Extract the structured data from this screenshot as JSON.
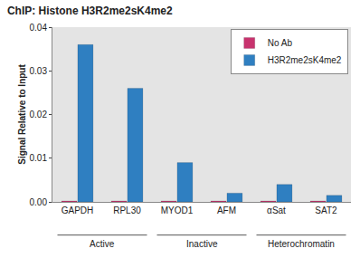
{
  "chart_data": {
    "type": "bar",
    "title": "ChIP: Histone H3R2me2sK4me2",
    "y_label": "Signal Relative to Input",
    "categories": [
      "GAPDH",
      "RPL30",
      "MYOD1",
      "AFM",
      "αSat",
      "SAT2"
    ],
    "groups": [
      {
        "label": "Active",
        "categories": [
          "GAPDH",
          "RPL30"
        ]
      },
      {
        "label": "Inactive",
        "categories": [
          "MYOD1",
          "AFM"
        ]
      },
      {
        "label": "Heterochromatin",
        "categories": [
          "αSat",
          "SAT2"
        ]
      }
    ],
    "series": [
      {
        "name": "No Ab",
        "color": "#c8336e",
        "values": [
          0.0002,
          0.0002,
          0.0002,
          0.0002,
          0.0002,
          0.0002
        ]
      },
      {
        "name": "H3R2me2sK4me2",
        "color": "#2f7fc1",
        "values": [
          0.036,
          0.026,
          0.009,
          0.002,
          0.004,
          0.0015
        ]
      }
    ],
    "ylim": [
      0,
      0.04
    ],
    "yticks": [
      {
        "value": 0,
        "label": "0.00"
      },
      {
        "value": 0.01,
        "label": "0.01"
      },
      {
        "value": 0.02,
        "label": "0.02"
      },
      {
        "value": 0.03,
        "label": "0.03"
      },
      {
        "value": 0.04,
        "label": "0.04"
      }
    ],
    "grid": false,
    "legend": "top-right"
  }
}
